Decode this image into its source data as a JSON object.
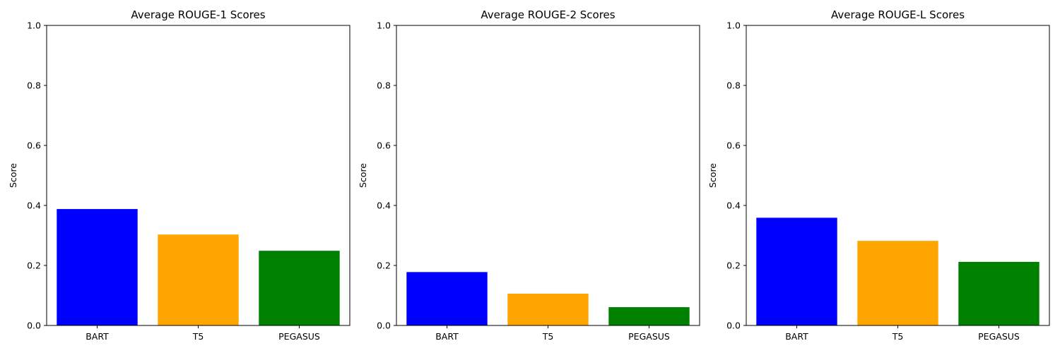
{
  "chart_data": [
    {
      "type": "bar",
      "title": "Average ROUGE-1 Scores",
      "xlabel": "",
      "ylabel": "Score",
      "categories": [
        "BART",
        "T5",
        "PEGASUS"
      ],
      "values": [
        0.388,
        0.303,
        0.249
      ],
      "colors": [
        "#0000ff",
        "#ffa500",
        "#008000"
      ],
      "ylim": [
        0,
        1.0
      ],
      "yticks": [
        "0.0",
        "0.2",
        "0.4",
        "0.6",
        "0.8",
        "1.0"
      ],
      "grid": false,
      "legend": "none"
    },
    {
      "type": "bar",
      "title": "Average ROUGE-2 Scores",
      "xlabel": "",
      "ylabel": "Score",
      "categories": [
        "BART",
        "T5",
        "PEGASUS"
      ],
      "values": [
        0.178,
        0.106,
        0.061
      ],
      "colors": [
        "#0000ff",
        "#ffa500",
        "#008000"
      ],
      "ylim": [
        0,
        1.0
      ],
      "yticks": [
        "0.0",
        "0.2",
        "0.4",
        "0.6",
        "0.8",
        "1.0"
      ],
      "grid": false,
      "legend": "none"
    },
    {
      "type": "bar",
      "title": "Average ROUGE-L Scores",
      "xlabel": "",
      "ylabel": "Score",
      "categories": [
        "BART",
        "T5",
        "PEGASUS"
      ],
      "values": [
        0.359,
        0.282,
        0.212
      ],
      "colors": [
        "#0000ff",
        "#ffa500",
        "#008000"
      ],
      "ylim": [
        0,
        1.0
      ],
      "yticks": [
        "0.0",
        "0.2",
        "0.4",
        "0.6",
        "0.8",
        "1.0"
      ],
      "grid": false,
      "legend": "none"
    }
  ]
}
